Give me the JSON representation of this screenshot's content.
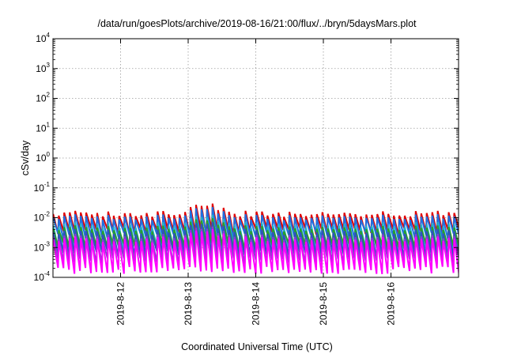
{
  "chart_data": {
    "type": "line",
    "title": "/data/run/goesPlots/archive/2019-08-16/21:00/flux/../bryn/5daysMars.plot",
    "xlabel": "Coordinated Universal Time (UTC)",
    "ylabel": "cSv/day",
    "x_ticks": [
      "2019-8-12",
      "2019-8-13",
      "2019-8-14",
      "2019-8-15",
      "2019-8-16"
    ],
    "y_ticks": [
      {
        "base": "10",
        "exp": "4"
      },
      {
        "base": "10",
        "exp": "3"
      },
      {
        "base": "10",
        "exp": "2"
      },
      {
        "base": "10",
        "exp": "1"
      },
      {
        "base": "10",
        "exp": "0"
      },
      {
        "base": "10",
        "exp": "-1"
      },
      {
        "base": "10",
        "exp": "-2"
      },
      {
        "base": "10",
        "exp": "-3"
      },
      {
        "base": "10",
        "exp": "-4"
      }
    ],
    "xlim": [
      "2019-08-11T00:00",
      "2019-08-17T00:00"
    ],
    "ylim": [
      0.0001,
      10000
    ],
    "yscale": "log",
    "grid": true,
    "period_hours": 1.95,
    "series": [
      {
        "color": "#e00000",
        "peak": 0.013,
        "trough": 0.0035
      },
      {
        "color": "#1f6fe0",
        "peak": 0.01,
        "trough": 0.0025
      },
      {
        "color": "#22b3c8",
        "peak": 0.0055,
        "trough": 0.0009
      },
      {
        "color": "#2aa02a",
        "peak": 0.0042,
        "trough": 0.0011
      },
      {
        "color": "#3050c0",
        "peak": 0.0032,
        "trough": 0.0006
      },
      {
        "color": "#8a3fd0",
        "peak": 0.0022,
        "trough": 0.00035
      },
      {
        "color": "#ff00ff",
        "peak": 0.0018,
        "trough": 0.00018
      }
    ]
  }
}
